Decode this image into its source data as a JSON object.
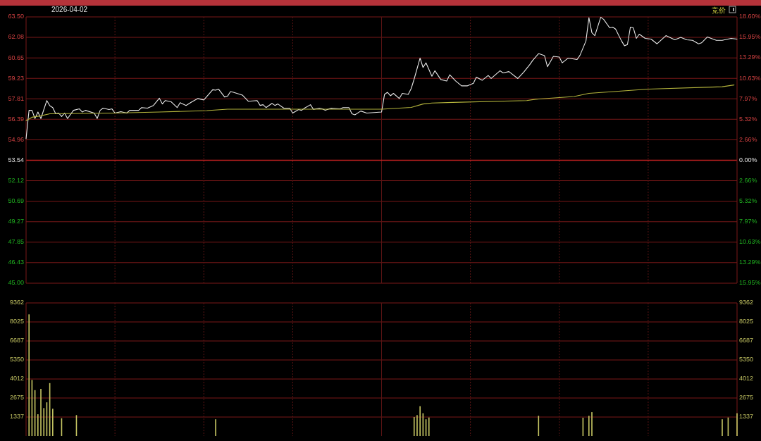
{
  "chart_data": [
    {
      "type": "line",
      "title": "2026-04-02",
      "annotations": [
        "竞价"
      ],
      "categories": [
        null,
        null,
        null,
        null,
        null,
        null,
        null,
        null,
        null,
        null,
        null,
        null,
        null,
        null,
        null,
        null,
        null,
        null,
        null,
        null,
        null,
        null,
        null,
        null,
        null,
        null,
        null,
        null,
        null,
        null,
        null,
        null,
        null,
        null,
        null,
        null,
        null,
        null,
        null,
        null,
        null,
        null,
        null,
        null,
        null,
        null,
        null,
        null,
        null,
        null,
        null,
        null,
        null,
        null,
        null,
        null,
        null,
        null,
        null,
        null,
        null,
        null,
        null,
        null,
        null,
        null,
        null,
        null,
        null,
        null,
        null,
        null,
        null,
        null,
        null,
        null,
        null,
        null,
        null,
        null,
        null,
        null,
        null,
        null,
        null,
        null,
        null,
        null,
        null,
        null,
        null,
        null,
        null,
        null,
        null,
        null,
        null,
        null,
        null,
        null,
        null,
        null,
        null,
        null,
        null,
        null,
        null,
        null,
        null,
        null,
        null,
        null,
        null,
        null,
        null,
        null,
        null,
        null,
        null,
        null,
        null,
        null,
        null,
        null,
        null,
        null,
        null,
        null,
        null,
        null,
        null,
        null,
        null,
        null,
        null,
        null,
        null,
        null,
        null,
        null,
        null,
        null,
        null,
        null,
        null,
        null,
        null,
        null,
        null,
        null,
        null,
        null,
        null,
        null,
        null,
        null,
        null,
        null,
        null,
        null,
        null,
        null,
        null,
        null,
        null,
        null,
        null,
        null,
        null,
        null,
        null,
        null,
        null,
        null,
        null,
        null,
        null,
        null,
        null,
        null,
        null,
        null,
        null,
        null,
        null,
        null,
        null,
        null,
        null,
        null,
        null,
        null,
        null,
        null,
        null,
        null,
        null,
        null,
        null,
        null,
        null,
        null,
        null,
        null,
        null,
        null,
        null,
        null,
        null,
        null,
        null,
        null,
        null,
        null,
        null,
        null,
        null,
        null,
        null,
        null,
        null,
        null,
        null,
        null,
        null,
        null,
        null,
        null,
        null,
        null,
        null,
        null,
        null,
        null,
        null,
        null,
        null,
        null,
        null,
        null,
        null
      ],
      "ylim": [
        45.0,
        63.5
      ],
      "yticks": [
        {
          "value": 63.5,
          "label": "63.50"
        },
        {
          "value": 62.08,
          "label": "62.08"
        },
        {
          "value": 60.65,
          "label": "60.65"
        },
        {
          "value": 59.23,
          "label": "59.23"
        },
        {
          "value": 57.81,
          "label": "57.81"
        },
        {
          "value": 56.39,
          "label": "56.39"
        },
        {
          "value": 54.96,
          "label": "54.96"
        },
        {
          "value": 53.54,
          "label": "53.54"
        },
        {
          "value": 52.12,
          "label": "52.12"
        },
        {
          "value": 50.69,
          "label": "50.69"
        },
        {
          "value": 49.27,
          "label": "49.27"
        },
        {
          "value": 47.85,
          "label": "47.85"
        },
        {
          "value": 46.43,
          "label": "46.43"
        },
        {
          "value": 45.0,
          "label": "45.00"
        }
      ],
      "y2lim": [
        -15.95,
        18.6
      ],
      "y2ticks": [
        {
          "value": 18.6,
          "label": "18.60%"
        },
        {
          "value": 15.95,
          "label": "15.95%"
        },
        {
          "value": 13.29,
          "label": "13.29%"
        },
        {
          "value": 10.63,
          "label": "10.63%"
        },
        {
          "value": 7.97,
          "label": "7.97%"
        },
        {
          "value": 5.32,
          "label": "5.32%"
        },
        {
          "value": 2.66,
          "label": "2.66%"
        },
        {
          "value": 0,
          "label": "0.00%"
        },
        {
          "value": -2.66,
          "label": "2.66%"
        },
        {
          "value": -5.32,
          "label": "5.32%"
        },
        {
          "value": -7.97,
          "label": "7.97%"
        },
        {
          "value": -10.63,
          "label": "10.63%"
        },
        {
          "value": -13.29,
          "label": "13.29%"
        },
        {
          "value": -15.95,
          "label": "15.95%"
        }
      ],
      "ref_lines": [
        {
          "axis": "y",
          "value": 53.54,
          "color": "#c02020"
        }
      ],
      "grid": true,
      "series": [
        {
          "color": "#e8e8e8",
          "values": [
            55.04,
            57.01,
            57.01,
            56.44,
            56.89,
            56.44,
            null,
            57.69,
            57.33,
            57.2,
            56.77,
            56.82,
            56.58,
            56.82,
            56.44,
            null,
            57.01,
            null,
            57.11,
            56.89,
            57.01,
            null,
            null,
            56.82,
            56.44,
            57.01,
            57.16,
            null,
            57.06,
            57.11,
            56.82,
            null,
            56.92,
            null,
            56.82,
            57.01,
            null,
            null,
            57.01,
            57.2,
            null,
            57.16,
            null,
            57.35,
            null,
            57.85,
            57.45,
            57.69,
            null,
            57.6,
            null,
            57.2,
            57.54,
            null,
            57.35,
            null,
            57.6,
            null,
            57.83,
            null,
            57.73,
            null,
            null,
            58.44,
            58.41,
            58.48,
            null,
            57.94,
            57.99,
            58.31,
            58.26,
            null,
            null,
            58.07,
            null,
            57.64,
            null,
            null,
            57.69,
            57.35,
            57.4,
            57.2,
            null,
            57.49,
            57.35,
            57.45,
            null,
            57.16,
            null,
            57.16,
            56.82,
            null,
            57.06,
            57.01,
            57.16,
            null,
            57.4,
            57.08,
            null,
            57.16,
            57.11,
            57.01,
            null,
            57.16,
            null,
            null,
            57.11,
            57.2,
            null,
            57.2,
            56.77,
            56.7,
            null,
            56.96,
            null,
            56.82,
            null,
            null,
            null,
            null,
            56.89,
            58.12,
            58.26,
            58.02,
            58.19,
            null,
            57.83,
            58.19,
            null,
            58.12,
            58.52,
            59.18,
            null,
            60.64,
            59.99,
            60.31,
            null,
            59.38,
            59.76,
            null,
            59.15,
            null,
            59.05,
            59.48,
            null,
            59.05,
            null,
            58.71,
            null,
            58.71,
            null,
            58.89,
            59.32,
            null,
            59.1,
            null,
            59.43,
            59.22,
            null,
            null,
            59.76,
            59.61,
            null,
            59.7,
            null,
            null,
            59.22,
            null,
            59.66,
            null,
            60.18,
            60.47,
            null,
            60.95,
            null,
            60.81,
            60.04,
            null,
            60.76,
            null,
            60.71,
            60.31,
            null,
            60.64,
            null,
            null,
            60.54,
            60.84,
            null,
            61.83,
            63.45,
            62.41,
            62.2,
            null,
            63.48,
            63.32,
            null,
            62.74,
            62.79,
            62.66,
            null,
            61.83,
            61.5,
            61.58,
            62.79,
            62.74,
            62.01,
            62.3,
            null,
            62.01,
            null,
            61.96,
            null,
            61.63,
            null,
            null,
            62.2,
            null,
            null,
            61.91,
            null,
            62.08,
            null,
            61.91,
            null,
            61.87,
            null,
            61.63,
            61.7,
            null,
            62.11,
            null,
            null,
            61.87,
            null,
            61.87,
            null,
            null,
            62.01,
            null,
            61.96
          ]
        },
        {
          "color": "#b4b43c",
          "values": [
            56.29,
            null,
            56.53,
            null,
            null,
            56.63,
            null,
            null,
            56.77,
            null,
            null,
            null,
            null,
            null,
            null,
            null,
            null,
            null,
            null,
            null,
            null,
            null,
            null,
            null,
            null,
            null,
            null,
            null,
            null,
            null,
            56.82,
            null,
            null,
            null,
            null,
            null,
            null,
            null,
            null,
            null,
            null,
            null,
            null,
            null,
            null,
            56.89,
            null,
            null,
            null,
            null,
            null,
            null,
            null,
            null,
            null,
            null,
            null,
            null,
            null,
            null,
            null,
            56.99,
            null,
            null,
            null,
            null,
            null,
            null,
            57.09,
            null,
            null,
            null,
            null,
            null,
            null,
            null,
            null,
            null,
            null,
            null,
            null,
            null,
            null,
            null,
            null,
            null,
            null,
            null,
            null,
            null,
            null,
            null,
            null,
            null,
            null,
            null,
            null,
            null,
            null,
            null,
            null,
            null,
            null,
            null,
            null,
            null,
            null,
            null,
            null,
            null,
            null,
            null,
            null,
            null,
            null,
            null,
            null,
            null,
            null,
            null,
            57.09,
            null,
            null,
            null,
            null,
            null,
            null,
            null,
            null,
            null,
            57.21,
            null,
            null,
            null,
            57.45,
            null,
            null,
            57.52,
            null,
            null,
            null,
            null,
            null,
            null,
            57.56,
            null,
            null,
            null,
            null,
            null,
            null,
            null,
            null,
            null,
            null,
            null,
            null,
            null,
            null,
            null,
            null,
            null,
            null,
            null,
            null,
            null,
            null,
            null,
            null,
            57.69,
            null,
            null,
            57.78,
            null,
            null,
            null,
            null,
            null,
            null,
            null,
            null,
            null,
            null,
            null,
            null,
            57.97,
            null,
            null,
            null,
            null,
            58.19,
            null,
            null,
            null,
            null,
            58.26,
            null,
            null,
            null,
            null,
            null,
            null,
            null,
            null,
            null,
            null,
            null,
            null,
            null,
            null,
            58.48,
            null,
            null,
            null,
            null,
            null,
            null,
            null,
            null,
            null,
            null,
            null,
            null,
            null,
            null,
            null,
            null,
            null,
            null,
            null,
            null,
            null,
            null,
            null,
            null,
            58.65,
            null,
            null,
            null,
            58.77,
            null
          ]
        }
      ]
    },
    {
      "type": "bar",
      "color": "#c8c864",
      "categories": [
        null,
        null,
        null,
        null,
        null,
        null,
        null,
        null,
        null,
        null,
        null,
        null,
        null,
        null,
        null,
        null,
        null,
        null,
        null,
        null,
        null,
        null,
        null,
        null,
        null,
        null,
        null,
        null,
        null,
        null,
        null,
        null,
        null,
        null,
        null,
        null,
        null,
        null,
        null,
        null,
        null,
        null,
        null,
        null,
        null,
        null,
        null,
        null,
        null,
        null,
        null,
        null,
        null,
        null,
        null,
        null,
        null,
        null,
        null,
        null,
        null,
        null,
        null,
        null,
        null,
        null,
        null,
        null,
        null,
        null,
        null,
        null,
        null,
        null,
        null,
        null,
        null,
        null,
        null,
        null,
        null,
        null,
        null,
        null,
        null,
        null,
        null,
        null,
        null,
        null,
        null,
        null,
        null,
        null,
        null,
        null,
        null,
        null,
        null,
        null,
        null,
        null,
        null,
        null,
        null,
        null,
        null,
        null,
        null,
        null,
        null,
        null,
        null,
        null,
        null,
        null,
        null,
        null,
        null,
        null,
        null,
        null,
        null,
        null,
        null,
        null,
        null,
        null,
        null,
        null,
        null,
        null,
        null,
        null,
        null,
        null,
        null,
        null,
        null,
        null,
        null,
        null,
        null,
        null,
        null,
        null,
        null,
        null,
        null,
        null,
        null,
        null,
        null,
        null,
        null,
        null,
        null,
        null,
        null,
        null,
        null,
        null,
        null,
        null,
        null,
        null,
        null,
        null,
        null,
        null,
        null,
        null,
        null,
        null,
        null,
        null,
        null,
        null,
        null,
        null,
        null,
        null,
        null,
        null,
        null,
        null,
        null,
        null,
        null,
        null,
        null,
        null,
        null,
        null,
        null,
        null,
        null,
        null,
        null,
        null,
        null,
        null,
        null,
        null,
        null,
        null,
        null,
        null,
        null,
        null,
        null,
        null,
        null,
        null,
        null,
        null,
        null,
        null,
        null,
        null,
        null,
        null,
        null,
        null,
        null,
        null,
        null,
        null,
        null,
        null,
        null,
        null,
        null,
        null,
        null,
        null,
        null,
        null,
        null,
        null,
        null
      ],
      "values": [
        null,
        8556,
        3949,
        3229,
        1535,
        3319,
        1968,
        2373,
        3724,
        1923,
        null,
        null,
        1256,
        null,
        null,
        null,
        null,
        1472,
        null,
        null,
        null,
        null,
        null,
        null,
        null,
        null,
        null,
        null,
        null,
        null,
        null,
        null,
        null,
        null,
        null,
        null,
        null,
        null,
        null,
        null,
        null,
        null,
        null,
        null,
        null,
        null,
        null,
        null,
        null,
        null,
        null,
        null,
        null,
        null,
        null,
        null,
        null,
        null,
        null,
        null,
        null,
        null,
        null,
        null,
        1180,
        null,
        null,
        null,
        null,
        null,
        null,
        null,
        null,
        null,
        null,
        null,
        null,
        null,
        null,
        null,
        null,
        null,
        null,
        null,
        null,
        null,
        null,
        null,
        null,
        null,
        null,
        null,
        null,
        null,
        null,
        null,
        null,
        null,
        null,
        null,
        null,
        null,
        null,
        null,
        null,
        null,
        null,
        null,
        null,
        null,
        null,
        null,
        null,
        null,
        null,
        null,
        null,
        null,
        null,
        null,
        null,
        null,
        null,
        null,
        null,
        null,
        null,
        null,
        null,
        null,
        null,
        1337,
        1472,
        2103,
        1608,
        1180,
        1306,
        null,
        null,
        null,
        null,
        null,
        null,
        null,
        null,
        null,
        null,
        null,
        null,
        null,
        null,
        null,
        null,
        null,
        null,
        null,
        null,
        null,
        null,
        null,
        null,
        null,
        null,
        null,
        null,
        null,
        null,
        null,
        null,
        null,
        null,
        null,
        null,
        1427,
        null,
        null,
        null,
        null,
        null,
        null,
        null,
        null,
        null,
        null,
        null,
        null,
        null,
        null,
        1292,
        null,
        1427,
        1680,
        null,
        null,
        null,
        null,
        null,
        null,
        null,
        null,
        null,
        null,
        null,
        null,
        null,
        null,
        null,
        null,
        null,
        null,
        null,
        null,
        null,
        null,
        null,
        null,
        null,
        null,
        null,
        null,
        null,
        null,
        null,
        null,
        null,
        null,
        null,
        null,
        null,
        null,
        null,
        null,
        null,
        null,
        null,
        1180,
        null,
        1306,
        null,
        null,
        1608
      ],
      "ylim": [
        0,
        9362
      ],
      "yticks": [
        9362,
        8025,
        6687,
        5350,
        4012,
        2675,
        1337
      ],
      "y2lim": [
        0,
        9362
      ],
      "y2ticks": [
        9362,
        8025,
        6687,
        5350,
        4012,
        2675,
        1337
      ],
      "grid": true
    }
  ]
}
